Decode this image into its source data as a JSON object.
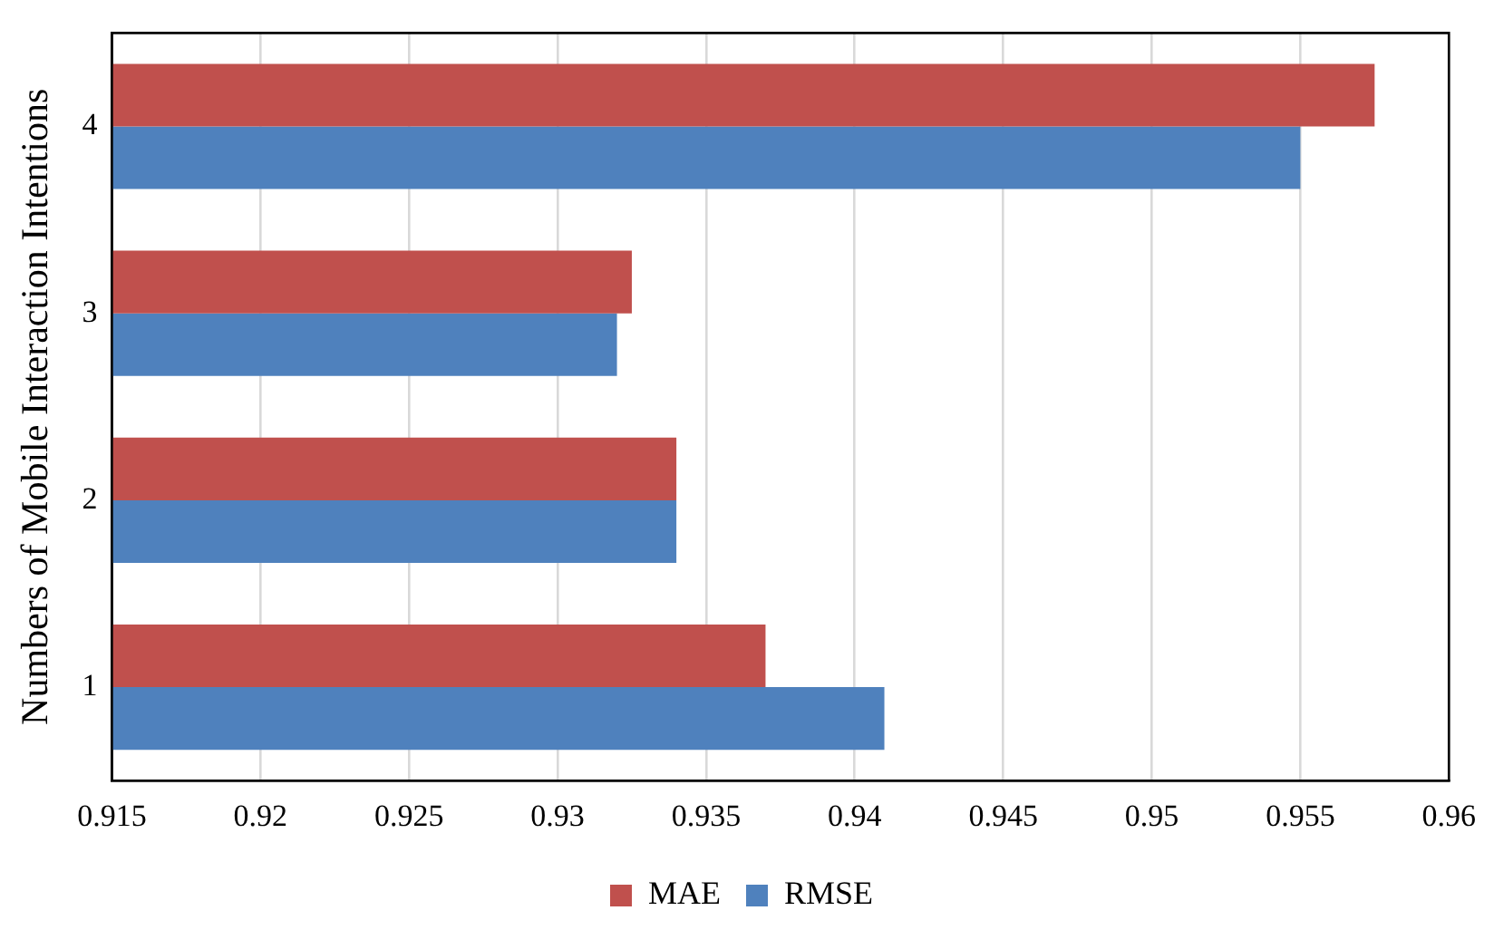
{
  "chart_data": {
    "type": "bar",
    "orientation": "horizontal",
    "ylabel": "Numbers of Mobile Interaction Intentions",
    "categories": [
      "4",
      "3",
      "2",
      "1"
    ],
    "series": [
      {
        "name": "MAE",
        "color": "#c0504d",
        "values": [
          0.9575,
          0.9325,
          0.934,
          0.937
        ]
      },
      {
        "name": "RMSE",
        "color": "#4f81bd",
        "values": [
          0.955,
          0.932,
          0.934,
          0.941
        ]
      }
    ],
    "xlim": [
      0.915,
      0.96
    ],
    "xticks": [
      0.915,
      0.92,
      0.925,
      0.93,
      0.935,
      0.94,
      0.945,
      0.95,
      0.955,
      0.96
    ],
    "grid": "x",
    "legend": "bottom"
  }
}
